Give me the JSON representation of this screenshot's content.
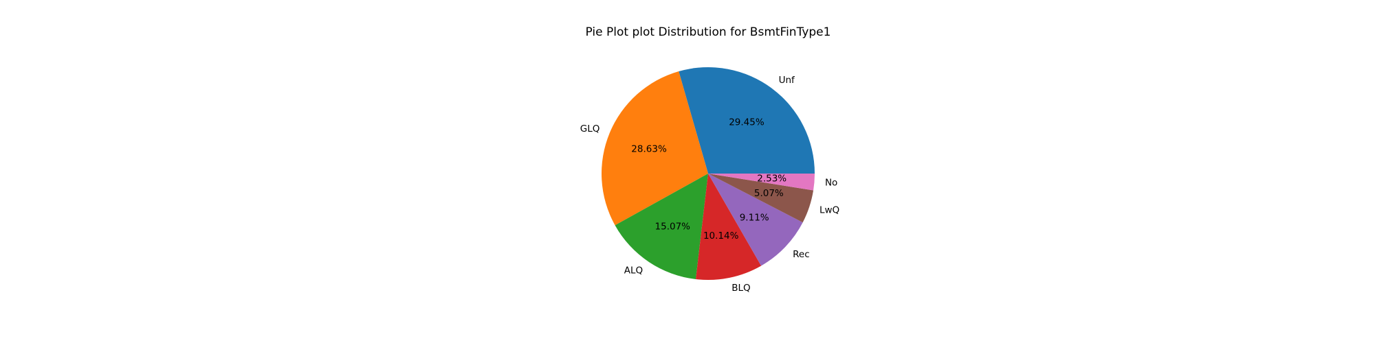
{
  "chart_data": {
    "type": "pie",
    "title": "Pie Plot plot Distribution for BsmtFinType1",
    "start_angle_deg": 0,
    "direction": "counterclockwise",
    "slices": [
      {
        "label": "Unf",
        "value": 29.45,
        "pct_text": "29.45%",
        "color": "#1f77b4"
      },
      {
        "label": "GLQ",
        "value": 28.63,
        "pct_text": "28.63%",
        "color": "#ff7f0e"
      },
      {
        "label": "ALQ",
        "value": 15.07,
        "pct_text": "15.07%",
        "color": "#2ca02c"
      },
      {
        "label": "BLQ",
        "value": 10.14,
        "pct_text": "10.14%",
        "color": "#d62728"
      },
      {
        "label": "Rec",
        "value": 9.11,
        "pct_text": "9.11%",
        "color": "#9467bd"
      },
      {
        "label": "LwQ",
        "value": 5.07,
        "pct_text": "5.07%",
        "color": "#8c564b"
      },
      {
        "label": "No",
        "value": 2.53,
        "pct_text": "2.53%",
        "color": "#e377c2"
      }
    ]
  }
}
